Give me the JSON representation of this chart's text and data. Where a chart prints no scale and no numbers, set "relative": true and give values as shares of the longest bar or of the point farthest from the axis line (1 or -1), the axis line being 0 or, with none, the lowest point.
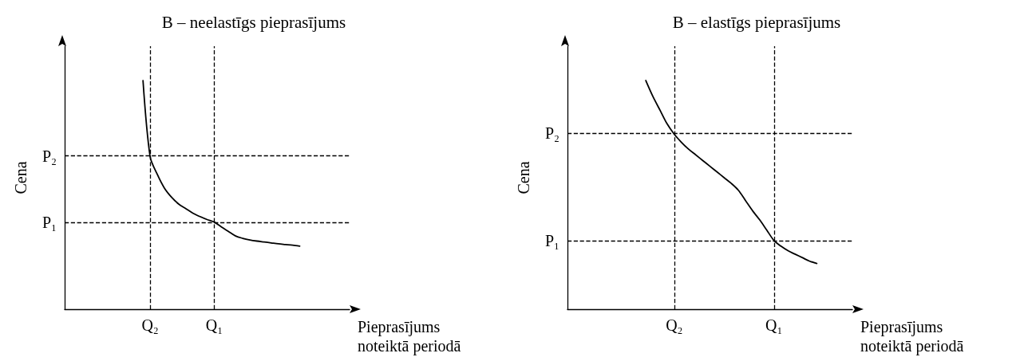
{
  "chart_data": [
    {
      "type": "line",
      "title": "B – neelastīgs pieprasījums",
      "xlabel": "Pieprasījums noteiktā periodā",
      "ylabel": "Cena",
      "relative": true,
      "marker": "none",
      "line_style": "solid",
      "grid": false,
      "categories": [
        null,
        null,
        null,
        null,
        null,
        null,
        null,
        null,
        null,
        null,
        null,
        null,
        "Q₂",
        null,
        null,
        null,
        null,
        null,
        null,
        null,
        null,
        "Q₁",
        null,
        null,
        null,
        null,
        null,
        null,
        null,
        null,
        null,
        null,
        null,
        null,
        null,
        null,
        null,
        null,
        null,
        null,
        null
      ],
      "series": [
        {
          "color": "#000000",
          "values": [
            null,
            null,
            null,
            null,
            null,
            null,
            null,
            null,
            null,
            null,
            null,
            1.0,
            0.667,
            0.59,
            0.53,
            0.49,
            0.46,
            0.44,
            0.42,
            0.405,
            0.392,
            0.381,
            0.36,
            0.34,
            0.32,
            0.31,
            0.303,
            0.298,
            0.294,
            0.29,
            0.286,
            0.283,
            0.28,
            0.276,
            null,
            null,
            null,
            null,
            null,
            null,
            null
          ]
        }
      ],
      "ref_lines": [
        {
          "axis": "y",
          "value": 0.667,
          "label": "P₂",
          "line_style": "dashed"
        },
        {
          "axis": "y",
          "value": 0.381,
          "label": "P₁",
          "line_style": "dashed"
        },
        {
          "axis": "x",
          "value": "Q₂",
          "line_style": "dashed"
        },
        {
          "axis": "x",
          "value": "Q₁",
          "line_style": "dashed"
        }
      ]
    },
    {
      "type": "line",
      "title": "B – elastīgs pieprasījums",
      "xlabel": "Pieprasījums noteiktā periodā",
      "ylabel": "Cena",
      "relative": true,
      "marker": "none",
      "line_style": "solid",
      "grid": false,
      "categories": [
        null,
        null,
        null,
        null,
        null,
        null,
        null,
        null,
        null,
        null,
        null,
        null,
        null,
        null,
        null,
        "Q₂",
        null,
        null,
        null,
        null,
        null,
        null,
        null,
        null,
        null,
        null,
        null,
        null,
        null,
        "Q₁",
        null,
        null,
        null,
        null,
        null,
        null,
        null,
        null,
        null,
        null,
        null
      ],
      "series": [
        {
          "color": "#000000",
          "values": [
            null,
            null,
            null,
            null,
            null,
            null,
            null,
            null,
            null,
            null,
            null,
            1.0,
            0.93,
            0.87,
            0.81,
            0.765,
            0.73,
            0.7,
            0.675,
            0.65,
            0.625,
            0.6,
            0.575,
            0.55,
            0.52,
            0.475,
            0.43,
            0.39,
            0.345,
            0.3,
            0.275,
            0.255,
            0.24,
            0.225,
            0.21,
            0.2,
            null,
            null,
            null,
            null,
            null
          ]
        }
      ],
      "ref_lines": [
        {
          "axis": "y",
          "value": 0.765,
          "label": "P₂",
          "line_style": "dashed"
        },
        {
          "axis": "y",
          "value": 0.3,
          "label": "P₁",
          "line_style": "dashed"
        },
        {
          "axis": "x",
          "value": "Q₂",
          "line_style": "dashed"
        },
        {
          "axis": "x",
          "value": "Q₁",
          "line_style": "dashed"
        }
      ]
    }
  ]
}
